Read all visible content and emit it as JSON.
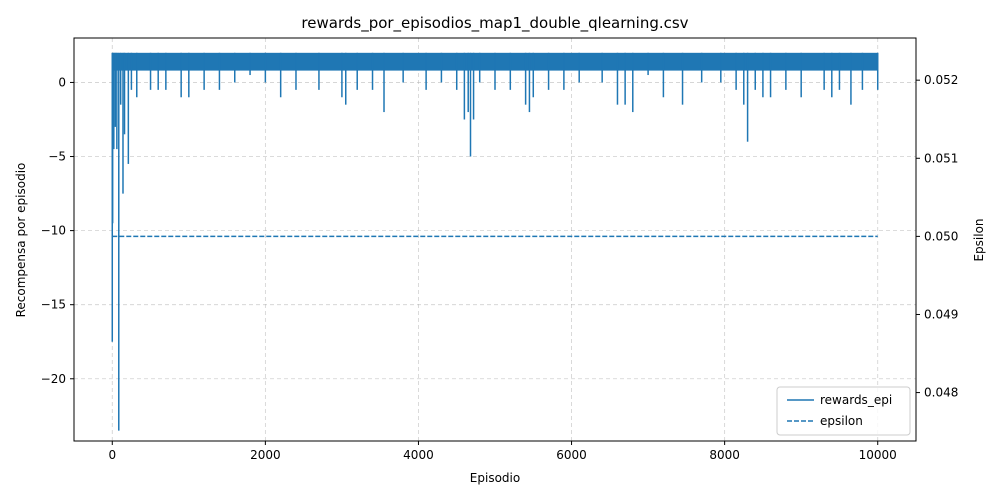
{
  "chart_data": {
    "type": "line",
    "title": "rewards_por_episodios_map1_double_qlearning.csv",
    "xlabel": "Episodio",
    "ylabel": "Recompensa por episodio",
    "y2label": "Epsilon",
    "xlim": [
      -500,
      10500
    ],
    "ylim": [
      -24.2,
      3.0
    ],
    "y2lim": [
      0.04738,
      0.05254
    ],
    "x_ticks": [
      0,
      2000,
      4000,
      6000,
      8000,
      10000
    ],
    "y_ticks": [
      0,
      -5,
      -10,
      -15,
      -20
    ],
    "y_tick_labels": [
      "0",
      "−5",
      "−10",
      "−15",
      "−20"
    ],
    "y2_ticks": [
      0.048,
      0.049,
      0.05,
      0.051,
      0.052
    ],
    "y2_tick_labels": [
      "0.048",
      "0.049",
      "0.050",
      "0.051",
      "0.052"
    ],
    "grid": true,
    "legend_position": "bottom-right",
    "color": "#1f77b4",
    "series": [
      {
        "name": "rewards_epi",
        "style": "solid",
        "axis": "left",
        "x_range": [
          0,
          10000
        ],
        "upper_value": 2,
        "dips": [
          [
            0,
            -17.5
          ],
          [
            5,
            -9.5
          ],
          [
            20,
            -4.5
          ],
          [
            40,
            -3.0
          ],
          [
            60,
            -4.5
          ],
          [
            85,
            -23.5
          ],
          [
            110,
            -1.5
          ],
          [
            140,
            -7.5
          ],
          [
            160,
            -3.5
          ],
          [
            210,
            -5.5
          ],
          [
            250,
            -0.5
          ],
          [
            320,
            -1.0
          ],
          [
            500,
            -0.5
          ],
          [
            600,
            -0.5
          ],
          [
            700,
            -0.5
          ],
          [
            900,
            -1.0
          ],
          [
            1000,
            -1.0
          ],
          [
            1200,
            -0.5
          ],
          [
            1400,
            -0.5
          ],
          [
            1600,
            0.0
          ],
          [
            1800,
            0.5
          ],
          [
            2000,
            0.0
          ],
          [
            2200,
            -1.0
          ],
          [
            2400,
            -0.5
          ],
          [
            2700,
            -0.5
          ],
          [
            3000,
            -1.0
          ],
          [
            3050,
            -1.5
          ],
          [
            3200,
            -0.5
          ],
          [
            3400,
            -0.5
          ],
          [
            3550,
            -2.0
          ],
          [
            3800,
            0.0
          ],
          [
            4100,
            -0.5
          ],
          [
            4300,
            0.0
          ],
          [
            4500,
            -0.5
          ],
          [
            4600,
            -2.5
          ],
          [
            4650,
            -2.0
          ],
          [
            4680,
            -5.0
          ],
          [
            4720,
            -2.5
          ],
          [
            4800,
            0.0
          ],
          [
            5000,
            -0.5
          ],
          [
            5200,
            -0.5
          ],
          [
            5400,
            -1.5
          ],
          [
            5450,
            -2.0
          ],
          [
            5500,
            -1.0
          ],
          [
            5700,
            -0.5
          ],
          [
            5900,
            -0.5
          ],
          [
            6100,
            0.0
          ],
          [
            6400,
            0.0
          ],
          [
            6600,
            -1.5
          ],
          [
            6700,
            -1.5
          ],
          [
            6800,
            -2.0
          ],
          [
            7000,
            0.5
          ],
          [
            7200,
            -1.0
          ],
          [
            7450,
            -1.5
          ],
          [
            7700,
            0.0
          ],
          [
            7950,
            0.0
          ],
          [
            8150,
            -0.5
          ],
          [
            8250,
            -1.5
          ],
          [
            8300,
            -4.0
          ],
          [
            8400,
            -0.5
          ],
          [
            8500,
            -1.0
          ],
          [
            8600,
            -1.0
          ],
          [
            8800,
            -0.5
          ],
          [
            9000,
            -1.0
          ],
          [
            9300,
            -0.5
          ],
          [
            9400,
            -1.0
          ],
          [
            9500,
            -0.5
          ],
          [
            9650,
            -1.5
          ],
          [
            9800,
            -0.5
          ],
          [
            10000,
            -0.5
          ]
        ]
      },
      {
        "name": "epsilon",
        "style": "dashed",
        "axis": "right",
        "x": [
          0,
          10000
        ],
        "values": [
          0.05,
          0.05
        ]
      }
    ]
  }
}
